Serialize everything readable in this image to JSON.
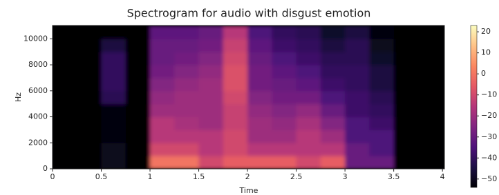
{
  "chart_data": {
    "type": "heatmap",
    "title": "Spectrogram for audio with disgust emotion",
    "xlabel": "Time",
    "ylabel": "Hz",
    "colormap": "magma",
    "x": [
      0.125,
      0.375,
      0.625,
      0.875,
      1.125,
      1.375,
      1.625,
      1.875,
      2.125,
      2.375,
      2.625,
      2.875,
      3.125,
      3.375,
      3.625,
      3.875
    ],
    "y": [
      500,
      1500,
      2500,
      3500,
      4500,
      5500,
      6500,
      7500,
      8500,
      9500,
      10500
    ],
    "z": [
      [
        -55,
        -55,
        -50,
        -55,
        0,
        0,
        -10,
        -5,
        -5,
        -5,
        -10,
        -5,
        -30,
        -30,
        -55,
        -55
      ],
      [
        -55,
        -55,
        -50,
        -55,
        -10,
        -10,
        -15,
        -10,
        -15,
        -15,
        -15,
        -15,
        -30,
        -35,
        -55,
        -55
      ],
      [
        -55,
        -55,
        -52,
        -55,
        -15,
        -15,
        -15,
        -10,
        -20,
        -20,
        -15,
        -20,
        -35,
        -35,
        -55,
        -55
      ],
      [
        -55,
        -55,
        -52,
        -55,
        -15,
        -18,
        -20,
        -12,
        -20,
        -22,
        -18,
        -25,
        -35,
        -38,
        -55,
        -55
      ],
      [
        -55,
        -55,
        -52,
        -55,
        -20,
        -20,
        -20,
        -12,
        -22,
        -25,
        -22,
        -30,
        -38,
        -40,
        -55,
        -55
      ],
      [
        -55,
        -55,
        -42,
        -55,
        -22,
        -20,
        -20,
        -10,
        -25,
        -28,
        -28,
        -35,
        -38,
        -42,
        -55,
        -55
      ],
      [
        -55,
        -55,
        -40,
        -55,
        -25,
        -22,
        -20,
        -8,
        -28,
        -30,
        -32,
        -38,
        -40,
        -45,
        -55,
        -55
      ],
      [
        -55,
        -55,
        -40,
        -55,
        -28,
        -25,
        -22,
        -8,
        -28,
        -32,
        -35,
        -40,
        -40,
        -45,
        -55,
        -55
      ],
      [
        -55,
        -55,
        -40,
        -55,
        -30,
        -28,
        -25,
        -10,
        -30,
        -35,
        -38,
        -42,
        -42,
        -48,
        -55,
        -55
      ],
      [
        -55,
        -55,
        -45,
        -55,
        -30,
        -30,
        -28,
        -12,
        -32,
        -38,
        -40,
        -45,
        -42,
        -50,
        -55,
        -55
      ],
      [
        -55,
        -55,
        -55,
        -55,
        -32,
        -32,
        -30,
        -15,
        -35,
        -40,
        -42,
        -48,
        -45,
        -52,
        -55,
        -55
      ]
    ],
    "xlim": [
      0,
      4.02
    ],
    "xticks": [
      0,
      0.5,
      1,
      1.5,
      2,
      2.5,
      3,
      3.5,
      4
    ],
    "ylim": [
      0,
      11025
    ],
    "yticks": [
      0,
      2000,
      4000,
      6000,
      8000,
      10000
    ],
    "clim": [
      -54,
      23
    ],
    "cticks": [
      20,
      10,
      0,
      {
        "value": -10,
        "label": "−10"
      },
      {
        "value": -20,
        "label": "−20"
      },
      {
        "value": -30,
        "label": "−30"
      },
      {
        "value": -40,
        "label": "−40"
      },
      {
        "value": -50,
        "label": "−50"
      }
    ]
  }
}
